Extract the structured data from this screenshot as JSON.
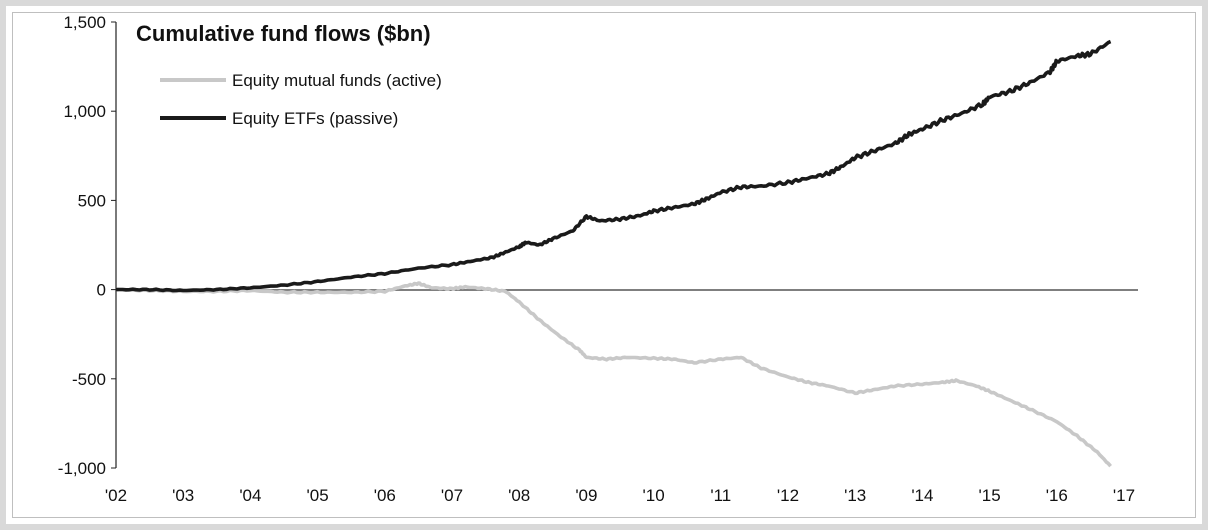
{
  "chart_data": {
    "type": "line",
    "title": "Cumulative fund flows ($bn)",
    "xlabel": "",
    "ylabel": "",
    "xlim": [
      2002,
      2017
    ],
    "ylim": [
      -1000,
      1500
    ],
    "x_ticks": [
      "'02",
      "'03",
      "'04",
      "'05",
      "'06",
      "'07",
      "'08",
      "'09",
      "'10",
      "'11",
      "'12",
      "'13",
      "'14",
      "'15",
      "'16",
      "'17"
    ],
    "y_ticks": [
      "1,500",
      "1,000",
      "500",
      "0",
      "-500",
      "-1,000"
    ],
    "y_tick_values": [
      1500,
      1000,
      500,
      0,
      -500,
      -1000
    ],
    "grid": false,
    "legend_position": "top-left",
    "series": [
      {
        "name": "Equity mutual funds (active)",
        "color": "#c8c8c8",
        "x": [
          2002,
          2002.5,
          2003,
          2003.5,
          2004,
          2004.5,
          2005,
          2005.5,
          2006,
          2006.3,
          2006.5,
          2006.7,
          2007,
          2007.2,
          2007.5,
          2007.8,
          2008,
          2008.3,
          2008.6,
          2008.9,
          2009,
          2009.3,
          2009.6,
          2010,
          2010.3,
          2010.6,
          2011,
          2011.3,
          2011.6,
          2012,
          2012.3,
          2012.6,
          2013,
          2013.3,
          2013.6,
          2014,
          2014.3,
          2014.5,
          2014.8,
          2015,
          2015.3,
          2015.6,
          2016,
          2016.3,
          2016.6,
          2016.8
        ],
        "y": [
          0,
          -5,
          -10,
          -10,
          -5,
          -15,
          -15,
          -15,
          -10,
          20,
          35,
          10,
          5,
          15,
          5,
          -10,
          -70,
          -170,
          -260,
          -340,
          -380,
          -390,
          -380,
          -385,
          -390,
          -410,
          -390,
          -380,
          -440,
          -490,
          -520,
          -540,
          -580,
          -560,
          -540,
          -530,
          -520,
          -510,
          -540,
          -570,
          -620,
          -670,
          -740,
          -820,
          -910,
          -990
        ]
      },
      {
        "name": "Equity ETFs (passive)",
        "color": "#1a1a1a",
        "x": [
          2002,
          2002.5,
          2003,
          2003.5,
          2004,
          2004.5,
          2005,
          2005.5,
          2006,
          2006.5,
          2007,
          2007.3,
          2007.6,
          2007.8,
          2008,
          2008.1,
          2008.3,
          2008.5,
          2008.8,
          2009,
          2009.2,
          2009.5,
          2009.8,
          2010,
          2010.3,
          2010.6,
          2010.8,
          2011,
          2011.3,
          2011.6,
          2012,
          2012.3,
          2012.6,
          2012.8,
          2013,
          2013.3,
          2013.6,
          2013.8,
          2014,
          2014.3,
          2014.6,
          2014.9,
          2015,
          2015.3,
          2015.6,
          2015.9,
          2016,
          2016.3,
          2016.5,
          2016.8
        ],
        "y": [
          0,
          0,
          -5,
          0,
          10,
          25,
          45,
          70,
          90,
          120,
          140,
          160,
          180,
          210,
          240,
          265,
          250,
          285,
          330,
          410,
          385,
          395,
          415,
          440,
          460,
          480,
          510,
          545,
          575,
          580,
          600,
          625,
          650,
          690,
          740,
          780,
          820,
          870,
          900,
          950,
          990,
          1040,
          1080,
          1110,
          1160,
          1220,
          1280,
          1310,
          1320,
          1390
        ]
      }
    ]
  }
}
